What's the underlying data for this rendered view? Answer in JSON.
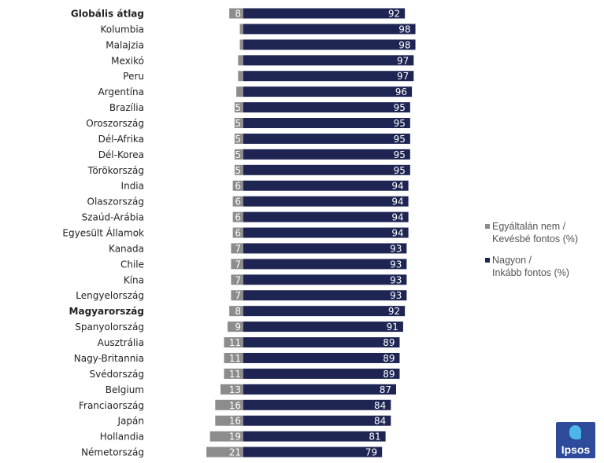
{
  "chart_data": {
    "type": "bar",
    "orientation": "horizontal-diverging",
    "title": "",
    "categories": [
      "Globális átlag",
      "Kolumbia",
      "Malajzia",
      "Mexikó",
      "Peru",
      "Argentína",
      "Brazília",
      "Oroszország",
      "Dél-Afrika",
      "Dél-Korea",
      "Törökország",
      "India",
      "Olaszország",
      "Szaúd-Arábia",
      "Egyesült Államok",
      "Kanada",
      "Chile",
      "Kína",
      "Lengyelország",
      "Magyarország",
      "Spanyolország",
      "Ausztrália",
      "Nagy-Britannia",
      "Svédország",
      "Belgium",
      "Franciaország",
      "Japán",
      "Hollandia",
      "Németország"
    ],
    "bold_categories": [
      "Globális átlag",
      "Magyarország"
    ],
    "series": [
      {
        "name": "Egyáltalán nem /\nKevésbé fontos (%)",
        "color": "#8c8c8c",
        "values": [
          8,
          2,
          2,
          3,
          3,
          4,
          5,
          5,
          5,
          5,
          5,
          6,
          6,
          6,
          6,
          7,
          7,
          7,
          7,
          8,
          9,
          11,
          11,
          11,
          13,
          16,
          16,
          19,
          21
        ],
        "labels": [
          "8",
          "",
          "",
          "",
          "",
          "",
          "5",
          "5",
          "5",
          "5",
          "5",
          "6",
          "6",
          "6",
          "6",
          "7",
          "7",
          "7",
          "7",
          "8",
          "9",
          "11",
          "11",
          "11",
          "13",
          "16",
          "16",
          "19",
          "21"
        ]
      },
      {
        "name": "Nagyon /\nInkább fontos (%)",
        "color": "#1e2553",
        "values": [
          92,
          98,
          98,
          97,
          97,
          96,
          95,
          95,
          95,
          95,
          95,
          94,
          94,
          94,
          94,
          93,
          93,
          93,
          93,
          92,
          91,
          89,
          89,
          89,
          87,
          84,
          84,
          81,
          79
        ],
        "labels": [
          "92",
          "98",
          "98",
          "97",
          "97",
          "96",
          "95",
          "95",
          "95",
          "95",
          "95",
          "94",
          "94",
          "94",
          "94",
          "93",
          "93",
          "93",
          "93",
          "92",
          "91",
          "89",
          "89",
          "89",
          "87",
          "84",
          "84",
          "81",
          "79"
        ]
      }
    ],
    "xlabel": "",
    "ylabel": "",
    "legend": "right"
  },
  "logo": {
    "text": "Ipsos"
  }
}
